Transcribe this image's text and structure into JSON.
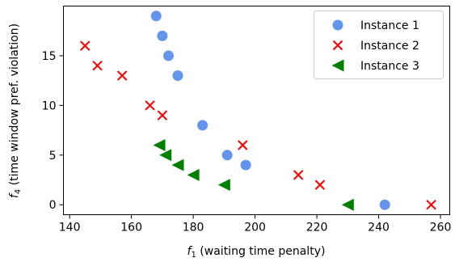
{
  "chart_data": {
    "type": "scatter",
    "xlabel_var": "f",
    "xlabel_sub": "1",
    "xlabel_text": " (waiting time penalty)",
    "ylabel_var": "f",
    "ylabel_sub": "4",
    "ylabel_text": " (time window pref. violation)",
    "xlim": [
      138,
      263
    ],
    "ylim": [
      -1,
      20
    ],
    "xticks": [
      140,
      160,
      180,
      200,
      220,
      240,
      260
    ],
    "yticks": [
      0,
      5,
      10,
      15
    ],
    "grid": false,
    "legend_position": "top-right",
    "series": [
      {
        "name": "Instance 1",
        "marker": "circle",
        "color": "#6495ED",
        "points": [
          [
            168,
            19
          ],
          [
            170,
            17
          ],
          [
            172,
            15
          ],
          [
            175,
            13
          ],
          [
            183,
            8
          ],
          [
            191,
            5
          ],
          [
            197,
            4
          ],
          [
            242,
            0
          ]
        ]
      },
      {
        "name": "Instance 2",
        "marker": "x",
        "color": "#FF0000",
        "points": [
          [
            145,
            16
          ],
          [
            149,
            14
          ],
          [
            157,
            13
          ],
          [
            166,
            10
          ],
          [
            170,
            9
          ],
          [
            196,
            6
          ],
          [
            214,
            3
          ],
          [
            221,
            2
          ],
          [
            257,
            0
          ]
        ]
      },
      {
        "name": "Instance 3",
        "marker": "triangle-left",
        "color": "#008000",
        "points": [
          [
            169,
            6
          ],
          [
            171,
            5
          ],
          [
            175,
            4
          ],
          [
            180,
            3
          ],
          [
            190,
            2
          ],
          [
            230,
            0
          ]
        ]
      }
    ]
  }
}
